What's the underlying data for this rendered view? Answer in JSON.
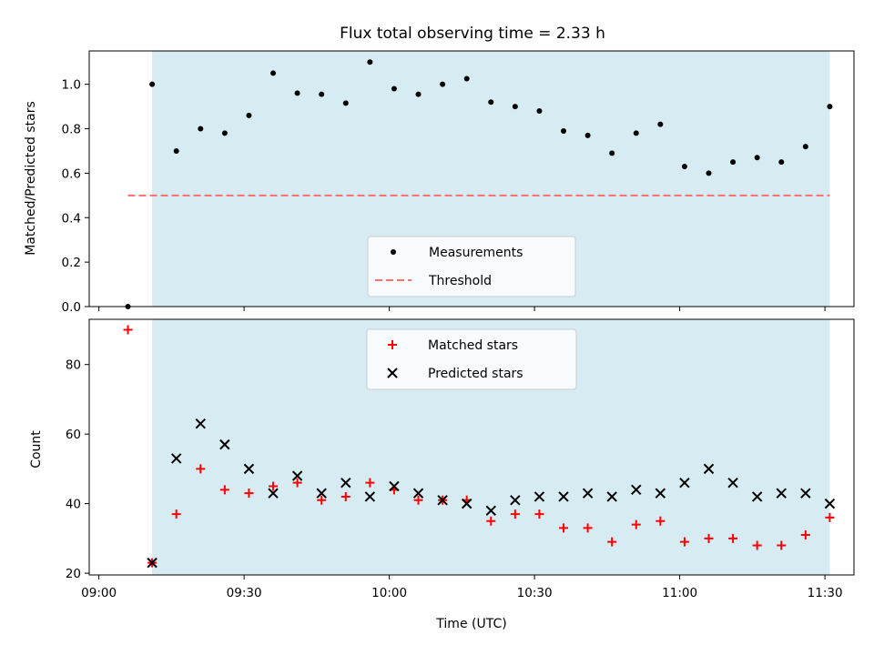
{
  "title": "Flux total observing time = 2.33 h",
  "colors": {
    "shade": "#add8e6",
    "measurement": "#000000",
    "threshold": "#ff6e6e",
    "matched": "#ff0000",
    "predicted": "#000000"
  },
  "chart_data": [
    {
      "type": "scatter",
      "ylabel": "Matched/Predicted stars",
      "xlabel": "",
      "xlim": [
        "08:58",
        "11:36"
      ],
      "ylim": [
        0,
        1.15
      ],
      "xticks": [
        "09:00",
        "09:30",
        "10:00",
        "10:30",
        "11:00",
        "11:30"
      ],
      "yticks": [
        "0.0",
        "0.2",
        "0.4",
        "0.6",
        "0.8",
        "1.0"
      ],
      "shaded_span": [
        "09:11",
        "11:31"
      ],
      "legend_position": "lower center",
      "series": [
        {
          "name": "Measurements",
          "marker": "dot",
          "x": [
            "09:06",
            "09:11",
            "09:16",
            "09:21",
            "09:26",
            "09:31",
            "09:36",
            "09:41",
            "09:46",
            "09:51",
            "09:56",
            "10:01",
            "10:06",
            "10:11",
            "10:16",
            "10:21",
            "10:26",
            "10:31",
            "10:36",
            "10:41",
            "10:46",
            "10:51",
            "10:56",
            "11:01",
            "11:06",
            "11:11",
            "11:16",
            "11:21",
            "11:26",
            "11:31"
          ],
          "y": [
            0.0,
            1.0,
            0.7,
            0.8,
            0.78,
            0.86,
            1.05,
            0.96,
            0.955,
            0.915,
            1.1,
            0.98,
            0.955,
            1.0,
            1.025,
            0.92,
            0.9,
            0.88,
            0.79,
            0.77,
            0.69,
            0.78,
            0.82,
            0.63,
            0.6,
            0.65,
            0.67,
            0.65,
            0.72,
            0.9
          ]
        },
        {
          "name": "Threshold",
          "marker": "dashed-line",
          "x": [
            "09:06",
            "11:31"
          ],
          "y": [
            0.5,
            0.5
          ]
        }
      ]
    },
    {
      "type": "scatter",
      "ylabel": "Count",
      "xlabel": "Time (UTC)",
      "xlim": [
        "08:58",
        "11:36"
      ],
      "ylim": [
        19.5,
        93
      ],
      "xticks": [
        "09:00",
        "09:30",
        "10:00",
        "10:30",
        "11:00",
        "11:30"
      ],
      "yticks": [
        "20",
        "40",
        "60",
        "80"
      ],
      "shaded_span": [
        "09:11",
        "11:31"
      ],
      "legend_position": "upper center",
      "series": [
        {
          "name": "Matched stars",
          "marker": "plus",
          "x": [
            "09:06",
            "09:11",
            "09:16",
            "09:21",
            "09:26",
            "09:31",
            "09:36",
            "09:41",
            "09:46",
            "09:51",
            "09:56",
            "10:01",
            "10:06",
            "10:11",
            "10:16",
            "10:21",
            "10:26",
            "10:31",
            "10:36",
            "10:41",
            "10:46",
            "10:51",
            "10:56",
            "11:01",
            "11:06",
            "11:11",
            "11:16",
            "11:21",
            "11:26",
            "11:31"
          ],
          "y": [
            90,
            23,
            37,
            50,
            44,
            43,
            45,
            46,
            41,
            42,
            46,
            44,
            41,
            41,
            41,
            35,
            37,
            37,
            33,
            33,
            29,
            34,
            35,
            29,
            30,
            30,
            28,
            28,
            31,
            36
          ]
        },
        {
          "name": "Predicted stars",
          "marker": "x",
          "x": [
            "09:11",
            "09:16",
            "09:21",
            "09:26",
            "09:31",
            "09:36",
            "09:41",
            "09:46",
            "09:51",
            "09:56",
            "10:01",
            "10:06",
            "10:11",
            "10:16",
            "10:21",
            "10:26",
            "10:31",
            "10:36",
            "10:41",
            "10:46",
            "10:51",
            "10:56",
            "11:01",
            "11:06",
            "11:11",
            "11:16",
            "11:21",
            "11:26",
            "11:31"
          ],
          "y": [
            23,
            53,
            63,
            57,
            50,
            43,
            48,
            43,
            46,
            42,
            45,
            43,
            41,
            40,
            38,
            41,
            42,
            42,
            43,
            42,
            44,
            43,
            46,
            50,
            46,
            42,
            43,
            43,
            40
          ]
        }
      ]
    }
  ]
}
